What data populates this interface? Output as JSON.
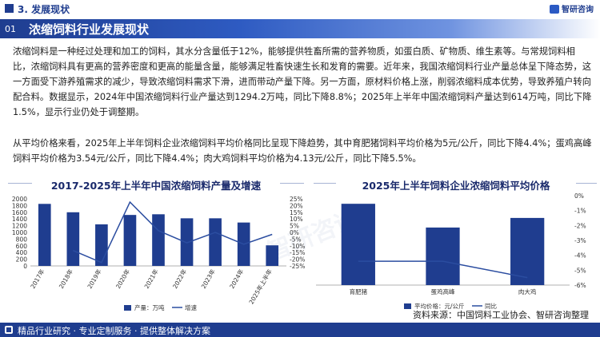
{
  "header": {
    "section_label": "3. 发展现状",
    "logo_text": "智研咨询"
  },
  "title_bar": {
    "page_num": "01",
    "title": "浓缩饲料行业发展现状"
  },
  "paragraphs": {
    "p1": "浓缩饲料是一种经过处理和加工的饲料，其水分含量低于12%，能够提供牲畜所需的营养物质，如蛋白质、矿物质、维生素等。与常规饲料相比，浓缩饲料具有更高的营养密度和更高的能量含量，能够满足牲畜快速生长和发育的需要。近年来，我国浓缩饲料行业产量总体呈下降态势，这一方面受下游养殖需求的减少，导致浓缩饲料需求下滑，进而带动产量下降。另一方面，原材料价格上涨，削弱浓缩料成本优势，导致养殖户转向配合料。数据显示，2024年中国浓缩饲料行业产量达到1294.2万吨，同比下降8.8%；2025年上半年中国浓缩饲料产量达到614万吨，同比下降1.5%，显示行业仍处于调整期。",
    "p2": "从平均价格来看，2025年上半年饲料企业浓缩饲料平均价格同比呈现下降趋势，其中育肥猪饲料平均价格为5元/公斤，同比下降4.4%；蛋鸡高峰饲料平均价格为3.54元/公斤，同比下降4.4%；肉大鸡饲料平均价格为4.13元/公斤，同比下降5.5%。"
  },
  "watermark": "智研咨询",
  "source": "资料来源：中国饲料工业协会、智研咨询整理",
  "footer": "精品行业研究 · 专业定制服务 · 提供整体解决方案",
  "colors": {
    "primary": "#1f3d8f",
    "bar": "#1f3d8f",
    "line": "#2b4da0"
  },
  "chart_data": [
    {
      "type": "bar",
      "title": "2017-2025年上半年中国浓缩饲料产量及增速",
      "categories": [
        "2017年",
        "2018年",
        "2019年",
        "2020年",
        "2021年",
        "2022年",
        "2023年",
        "2024年",
        "2025年上半年"
      ],
      "series": [
        {
          "name": "产量：万吨",
          "type": "bar",
          "axis": "left",
          "values": [
            1850,
            1600,
            1240,
            1520,
            1540,
            1420,
            1420,
            1294.2,
            614
          ]
        },
        {
          "name": "增速",
          "type": "line",
          "axis": "right",
          "values": [
            null,
            -13.5,
            -22.5,
            22.6,
            1.3,
            -7.8,
            0,
            -8.8,
            -1.5
          ]
        }
      ],
      "yleft": {
        "ylim": [
          0,
          2000
        ],
        "ticks": [
          "0",
          "200",
          "400",
          "600",
          "800",
          "1000",
          "1200",
          "1400",
          "1600",
          "1800",
          "2000"
        ]
      },
      "yright": {
        "ylim": [
          -25,
          25
        ],
        "ticks": [
          "-25%",
          "-20%",
          "-15%",
          "-10%",
          "-5%",
          "0%",
          "5%",
          "10%",
          "15%",
          "20%",
          "25%"
        ]
      },
      "legend": "bottom"
    },
    {
      "type": "bar",
      "title": "2025年上半年饲料企业浓缩饲料平均价格",
      "categories": [
        "育肥猪",
        "蛋鸡高峰",
        "肉大鸡"
      ],
      "series": [
        {
          "name": "平均价格：元/公斤",
          "type": "bar",
          "axis": "left",
          "values": [
            5,
            3.54,
            4.13
          ]
        },
        {
          "name": "同比",
          "type": "line",
          "axis": "right",
          "values": [
            -4.4,
            -4.4,
            -5.5
          ]
        }
      ],
      "yright": {
        "ylim": [
          -6,
          0
        ],
        "ticks": [
          "-6%",
          "-5%",
          "-4%",
          "-3%",
          "-2%",
          "-1%",
          "0%"
        ]
      },
      "legend": "bottom"
    }
  ]
}
